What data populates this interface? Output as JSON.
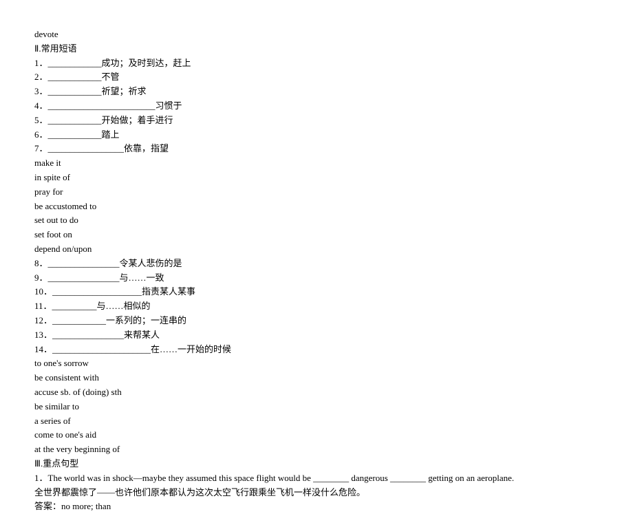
{
  "lines": [
    "devote",
    "Ⅱ.常用短语",
    "1．____________成功；及时到达，赶上",
    "2．____________不管",
    "3．____________祈望；祈求",
    "4．________________________习惯于",
    "5．____________开始做；着手进行",
    "6．____________踏上",
    "7．_________________依靠，指望",
    "make it",
    "in spite of",
    "pray for",
    "be accustomed to",
    "set out to do",
    "set foot on",
    "depend on/upon",
    "8．________________令某人悲伤的是",
    "9．________________与……一致",
    "10．____________________指责某人某事",
    "11．__________与……相似的",
    "12．____________一系列的；一连串的",
    "13．________________来帮某人",
    "14．______________________在……一开始的时候",
    "to one's sorrow",
    "be consistent with",
    "accuse sb. of (doing) sth",
    "be similar to",
    "a series of",
    "come to one's aid",
    "at the very beginning of",
    "Ⅲ.重点句型",
    "1．The world was in shock—maybe they assumed this space flight would be ________ dangerous ________ getting on an aeroplane.",
    "全世界都震惊了——也许他们原本都认为这次太空飞行跟乘坐飞机一样没什么危险。",
    "答案：no more; than"
  ]
}
